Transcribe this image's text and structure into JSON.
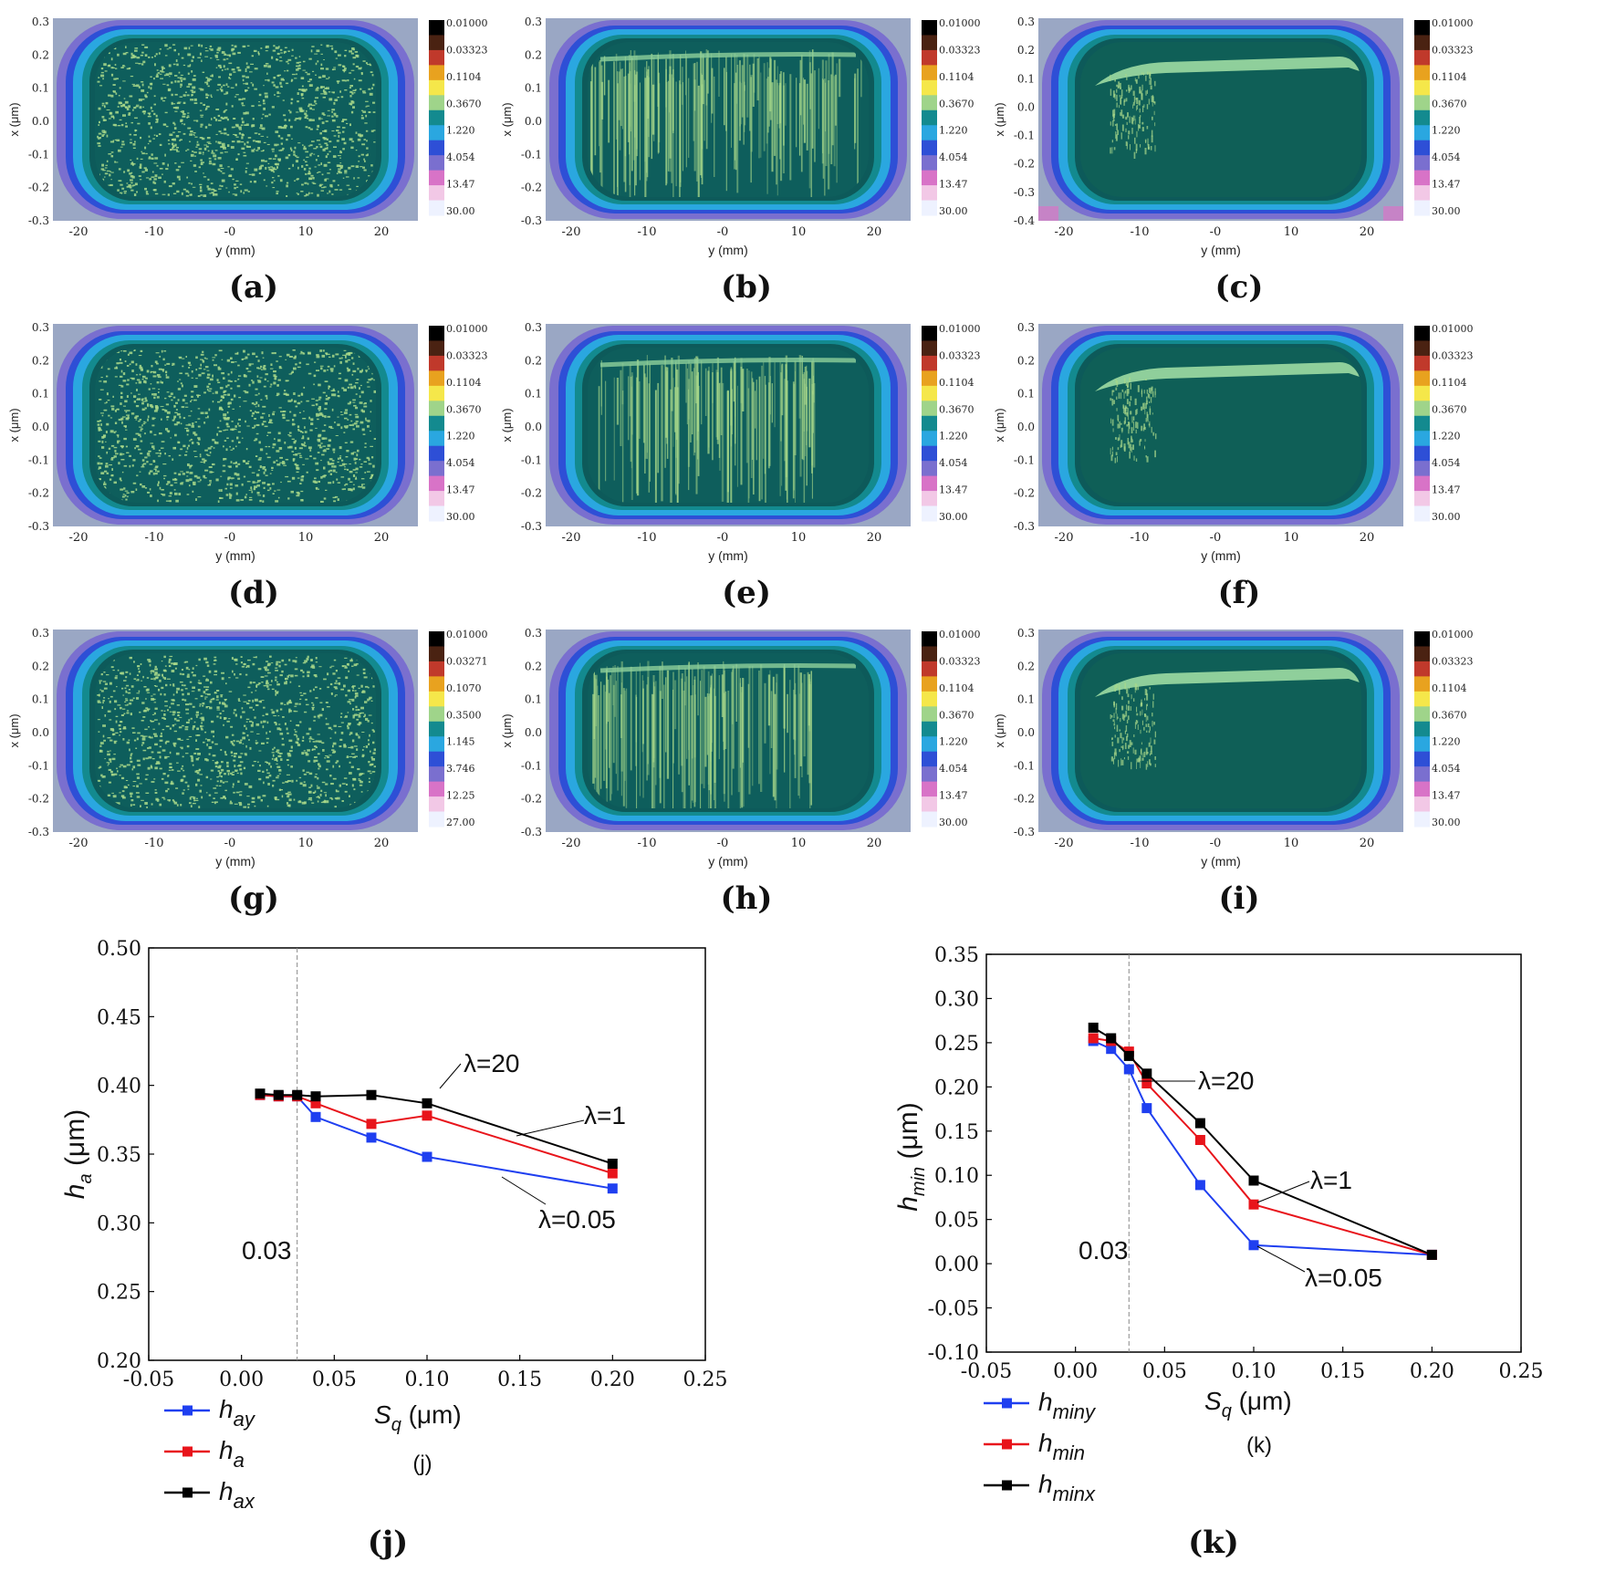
{
  "colors": {
    "outer_bg": "#9aa7c4",
    "band_violet": "#7a6fcf",
    "band_blue": "#2e4fd6",
    "band_cyan": "#2aa7e0",
    "band_teal": "#138a8f",
    "band_dark": "#0d5a5a",
    "speck": "#a9d98a",
    "interior_fine": "#0e5e5c",
    "interior_smooth": "#0f5f57",
    "light_band": "#8fcf9b",
    "pink": "#d873c7",
    "series_y": "#1f3ff0",
    "series_mid": "#e8141b",
    "series_x": "#000000",
    "refline": "#888888"
  },
  "colorbar_colors": [
    "#000000",
    "#4a2212",
    "#c0392b",
    "#e8a21f",
    "#f5e74a",
    "#9fd48a",
    "#138a8f",
    "#2aa7e0",
    "#2e4fd6",
    "#7a6fcf",
    "#d873c7",
    "#f2c8e6",
    "#eef2ff"
  ],
  "contour_map": {
    "xlabel": "x (μm)",
    "ylabel": "y (mm)",
    "xticks_default": [
      "0.3",
      "0.2",
      "0.1",
      "0.0",
      "-0.1",
      "-0.2",
      "-0.3"
    ],
    "xticks_c": [
      "0.3",
      "0.2",
      "0.1",
      "0.0",
      "-0.1",
      "-0.2",
      "-0.3",
      "-0.4"
    ],
    "yticks": [
      "-20",
      "-10",
      "-0",
      "10",
      "20"
    ],
    "colorbar_default": [
      "0.01000",
      "0.03323",
      "0.1104",
      "0.3670",
      "1.220",
      "4.054",
      "13.47",
      "30.00"
    ],
    "colorbar_g": [
      "0.01000",
      "0.03271",
      "0.1070",
      "0.3500",
      "1.145",
      "3.746",
      "12.25",
      "27.00"
    ]
  },
  "panels": [
    {
      "id": "a",
      "label": "(a)",
      "colorbar": "default",
      "xticks": "default",
      "style": "speckle"
    },
    {
      "id": "b",
      "label": "(b)",
      "colorbar": "default",
      "xticks": "default",
      "style": "streak"
    },
    {
      "id": "c",
      "label": "(c)",
      "colorbar": "default",
      "xticks": "c",
      "style": "smooth"
    },
    {
      "id": "d",
      "label": "(d)",
      "colorbar": "default",
      "xticks": "default",
      "style": "speckle"
    },
    {
      "id": "e",
      "label": "(e)",
      "colorbar": "default",
      "xticks": "default",
      "style": "streak"
    },
    {
      "id": "f",
      "label": "(f)",
      "colorbar": "default",
      "xticks": "default",
      "style": "smooth"
    },
    {
      "id": "g",
      "label": "(g)",
      "colorbar": "g",
      "xticks": "default",
      "style": "speckle"
    },
    {
      "id": "h",
      "label": "(h)",
      "colorbar": "default",
      "xticks": "default",
      "style": "streak"
    },
    {
      "id": "i",
      "label": "(i)",
      "colorbar": "default",
      "xticks": "default",
      "style": "smooth"
    }
  ],
  "chart_data": [
    {
      "type": "line",
      "panel": "(j)",
      "caption": "(j)",
      "inner_label": "(j)",
      "xlabel_main": "S",
      "xlabel_sub": "q",
      "xlabel_unit": " (μm)",
      "ylabel_main": "h",
      "ylabel_sub": "a",
      "ylabel_unit": " (μm)",
      "xlim": [
        -0.05,
        0.25
      ],
      "ylim": [
        0.2,
        0.5
      ],
      "xticks": [
        -0.05,
        0.0,
        0.05,
        0.1,
        0.15,
        0.2,
        0.25
      ],
      "xtick_labels": [
        "-0.05",
        "0.00",
        "0.05",
        "0.10",
        "0.15",
        "0.20",
        "0.25"
      ],
      "yticks": [
        0.2,
        0.25,
        0.3,
        0.35,
        0.4,
        0.45,
        0.5
      ],
      "ytick_labels": [
        "0.20",
        "0.25",
        "0.30",
        "0.35",
        "0.40",
        "0.45",
        "0.50"
      ],
      "reference_line": 0.03,
      "reference_label": "0.03",
      "series": [
        {
          "name_main": "h",
          "name_sub": "ay",
          "color": "#1f3ff0",
          "x": [
            0.01,
            0.02,
            0.03,
            0.04,
            0.07,
            0.1,
            0.2
          ],
          "y": [
            0.393,
            0.392,
            0.392,
            0.377,
            0.362,
            0.348,
            0.325
          ]
        },
        {
          "name_main": "h",
          "name_sub": "a",
          "color": "#e8141b",
          "x": [
            0.01,
            0.02,
            0.03,
            0.04,
            0.07,
            0.1,
            0.2
          ],
          "y": [
            0.393,
            0.392,
            0.392,
            0.387,
            0.372,
            0.378,
            0.336
          ]
        },
        {
          "name_main": "h",
          "name_sub": "ax",
          "color": "#000000",
          "x": [
            0.01,
            0.02,
            0.03,
            0.04,
            0.07,
            0.1,
            0.2
          ],
          "y": [
            0.394,
            0.393,
            0.393,
            0.392,
            0.393,
            0.387,
            0.343
          ]
        }
      ],
      "annotations": [
        "λ=20",
        "λ=1",
        "λ=0.05"
      ]
    },
    {
      "type": "line",
      "panel": "(k)",
      "caption": "(k)",
      "inner_label": "(k)",
      "xlabel_main": "S",
      "xlabel_sub": "q",
      "xlabel_unit": " (μm)",
      "ylabel_main": "h",
      "ylabel_sub": "min",
      "ylabel_unit": " (μm)",
      "xlim": [
        -0.05,
        0.25
      ],
      "ylim": [
        -0.1,
        0.35
      ],
      "xticks": [
        -0.05,
        0.0,
        0.05,
        0.1,
        0.15,
        0.2,
        0.25
      ],
      "xtick_labels": [
        "-0.05",
        "0.00",
        "0.05",
        "0.10",
        "0.15",
        "0.20",
        "0.25"
      ],
      "yticks": [
        -0.1,
        -0.05,
        0.0,
        0.05,
        0.1,
        0.15,
        0.2,
        0.25,
        0.3,
        0.35
      ],
      "ytick_labels": [
        "-0.10",
        "-0.05",
        "0.00",
        "0.05",
        "0.10",
        "0.15",
        "0.20",
        "0.25",
        "0.30",
        "0.35"
      ],
      "reference_line": 0.03,
      "reference_label": "0.03",
      "series": [
        {
          "name_main": "h",
          "name_sub": "miny",
          "color": "#1f3ff0",
          "x": [
            0.01,
            0.02,
            0.03,
            0.04,
            0.07,
            0.1,
            0.2
          ],
          "y": [
            0.252,
            0.243,
            0.22,
            0.176,
            0.089,
            0.021,
            0.01
          ]
        },
        {
          "name_main": "h",
          "name_sub": "min",
          "color": "#e8141b",
          "x": [
            0.01,
            0.02,
            0.03,
            0.04,
            0.07,
            0.1,
            0.2
          ],
          "y": [
            0.255,
            0.252,
            0.24,
            0.204,
            0.14,
            0.067,
            0.01
          ]
        },
        {
          "name_main": "h",
          "name_sub": "minx",
          "color": "#000000",
          "x": [
            0.01,
            0.02,
            0.03,
            0.04,
            0.07,
            0.1,
            0.2
          ],
          "y": [
            0.267,
            0.255,
            0.235,
            0.215,
            0.159,
            0.094,
            0.01
          ]
        }
      ],
      "annotations": [
        "λ=20",
        "λ=1",
        "λ=0.05"
      ]
    }
  ]
}
